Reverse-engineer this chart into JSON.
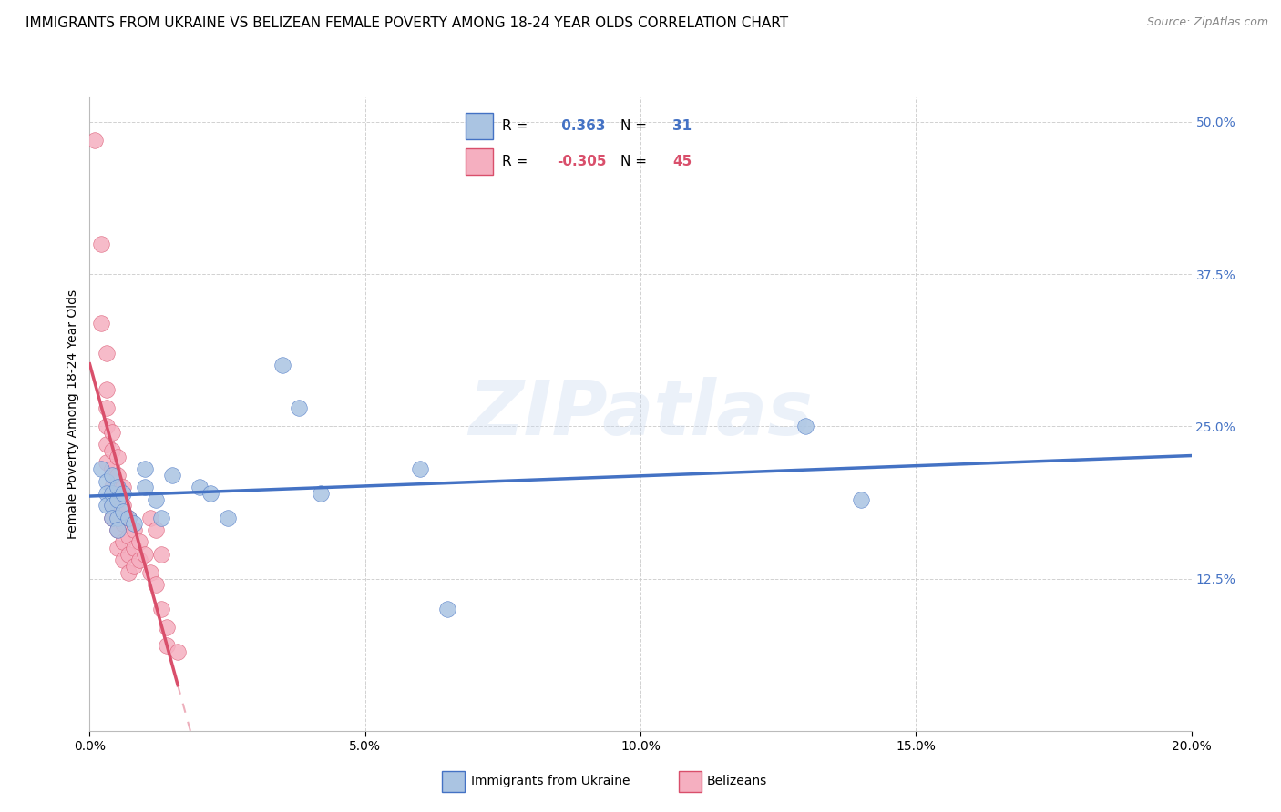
{
  "title": "IMMIGRANTS FROM UKRAINE VS BELIZEAN FEMALE POVERTY AMONG 18-24 YEAR OLDS CORRELATION CHART",
  "source": "Source: ZipAtlas.com",
  "ylabel": "Female Poverty Among 18-24 Year Olds",
  "yticks": [
    0.0,
    0.125,
    0.25,
    0.375,
    0.5
  ],
  "ytick_labels": [
    "",
    "12.5%",
    "25.0%",
    "37.5%",
    "50.0%"
  ],
  "xticks": [
    0.0,
    0.05,
    0.1,
    0.15,
    0.2
  ],
  "xtick_labels": [
    "0.0%",
    "5.0%",
    "10.0%",
    "15.0%",
    "20.0%"
  ],
  "xlim": [
    0.0,
    0.2
  ],
  "ylim": [
    0.0,
    0.52
  ],
  "legend_r_ukraine": "0.363",
  "legend_n_ukraine": "31",
  "legend_r_belize": "-0.305",
  "legend_n_belize": "45",
  "color_ukraine": "#aac4e2",
  "color_belize": "#f5afc0",
  "line_color_ukraine": "#4472c4",
  "line_color_belize": "#d94f6b",
  "ukraine_scatter": [
    [
      0.002,
      0.215
    ],
    [
      0.003,
      0.205
    ],
    [
      0.003,
      0.195
    ],
    [
      0.003,
      0.185
    ],
    [
      0.004,
      0.21
    ],
    [
      0.004,
      0.195
    ],
    [
      0.004,
      0.185
    ],
    [
      0.004,
      0.175
    ],
    [
      0.005,
      0.2
    ],
    [
      0.005,
      0.19
    ],
    [
      0.005,
      0.175
    ],
    [
      0.005,
      0.165
    ],
    [
      0.006,
      0.195
    ],
    [
      0.006,
      0.18
    ],
    [
      0.007,
      0.175
    ],
    [
      0.008,
      0.17
    ],
    [
      0.01,
      0.215
    ],
    [
      0.01,
      0.2
    ],
    [
      0.012,
      0.19
    ],
    [
      0.013,
      0.175
    ],
    [
      0.015,
      0.21
    ],
    [
      0.02,
      0.2
    ],
    [
      0.022,
      0.195
    ],
    [
      0.025,
      0.175
    ],
    [
      0.035,
      0.3
    ],
    [
      0.038,
      0.265
    ],
    [
      0.042,
      0.195
    ],
    [
      0.06,
      0.215
    ],
    [
      0.065,
      0.1
    ],
    [
      0.13,
      0.25
    ],
    [
      0.14,
      0.19
    ]
  ],
  "belize_scatter": [
    [
      0.001,
      0.485
    ],
    [
      0.002,
      0.4
    ],
    [
      0.002,
      0.335
    ],
    [
      0.003,
      0.31
    ],
    [
      0.003,
      0.28
    ],
    [
      0.003,
      0.265
    ],
    [
      0.003,
      0.25
    ],
    [
      0.003,
      0.235
    ],
    [
      0.003,
      0.22
    ],
    [
      0.004,
      0.245
    ],
    [
      0.004,
      0.23
    ],
    [
      0.004,
      0.215
    ],
    [
      0.004,
      0.2
    ],
    [
      0.004,
      0.185
    ],
    [
      0.004,
      0.175
    ],
    [
      0.005,
      0.225
    ],
    [
      0.005,
      0.21
    ],
    [
      0.005,
      0.195
    ],
    [
      0.005,
      0.18
    ],
    [
      0.005,
      0.165
    ],
    [
      0.005,
      0.15
    ],
    [
      0.006,
      0.2
    ],
    [
      0.006,
      0.185
    ],
    [
      0.006,
      0.17
    ],
    [
      0.006,
      0.155
    ],
    [
      0.006,
      0.14
    ],
    [
      0.007,
      0.175
    ],
    [
      0.007,
      0.16
    ],
    [
      0.007,
      0.145
    ],
    [
      0.007,
      0.13
    ],
    [
      0.008,
      0.165
    ],
    [
      0.008,
      0.15
    ],
    [
      0.008,
      0.135
    ],
    [
      0.009,
      0.155
    ],
    [
      0.009,
      0.14
    ],
    [
      0.01,
      0.145
    ],
    [
      0.011,
      0.175
    ],
    [
      0.011,
      0.13
    ],
    [
      0.012,
      0.165
    ],
    [
      0.012,
      0.12
    ],
    [
      0.013,
      0.145
    ],
    [
      0.013,
      0.1
    ],
    [
      0.014,
      0.085
    ],
    [
      0.014,
      0.07
    ],
    [
      0.016,
      0.065
    ]
  ],
  "background_color": "#ffffff",
  "grid_color": "#cccccc",
  "watermark_text": "ZIPatlas",
  "title_fontsize": 11,
  "axis_label_fontsize": 10,
  "tick_fontsize": 10,
  "legend_fontsize": 11
}
